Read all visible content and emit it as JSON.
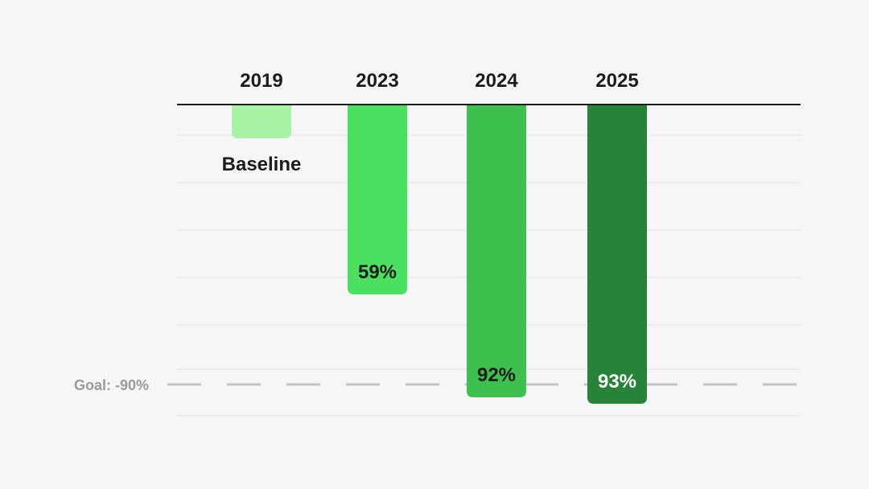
{
  "chart_data": {
    "type": "bar",
    "categories": [
      "2019",
      "2023",
      "2024",
      "2025"
    ],
    "values": [
      0,
      -59,
      -92,
      -93
    ],
    "value_labels": [
      "",
      "59%",
      "92%",
      "93%"
    ],
    "baseline_label": "Baseline",
    "colors": [
      "#a8f2a6",
      "#4ce061",
      "#3dc04e",
      "#278338"
    ],
    "label_colors": [
      "#1c1c1c",
      "#1c1c1c",
      "#1c1c1c",
      "#ffffff"
    ],
    "goal": {
      "value": -90,
      "label": "Goal: -90%",
      "color": "#c4c4c4"
    },
    "ylim": [
      -100,
      0
    ],
    "grid": true,
    "title": "",
    "xlabel": "",
    "ylabel": ""
  }
}
